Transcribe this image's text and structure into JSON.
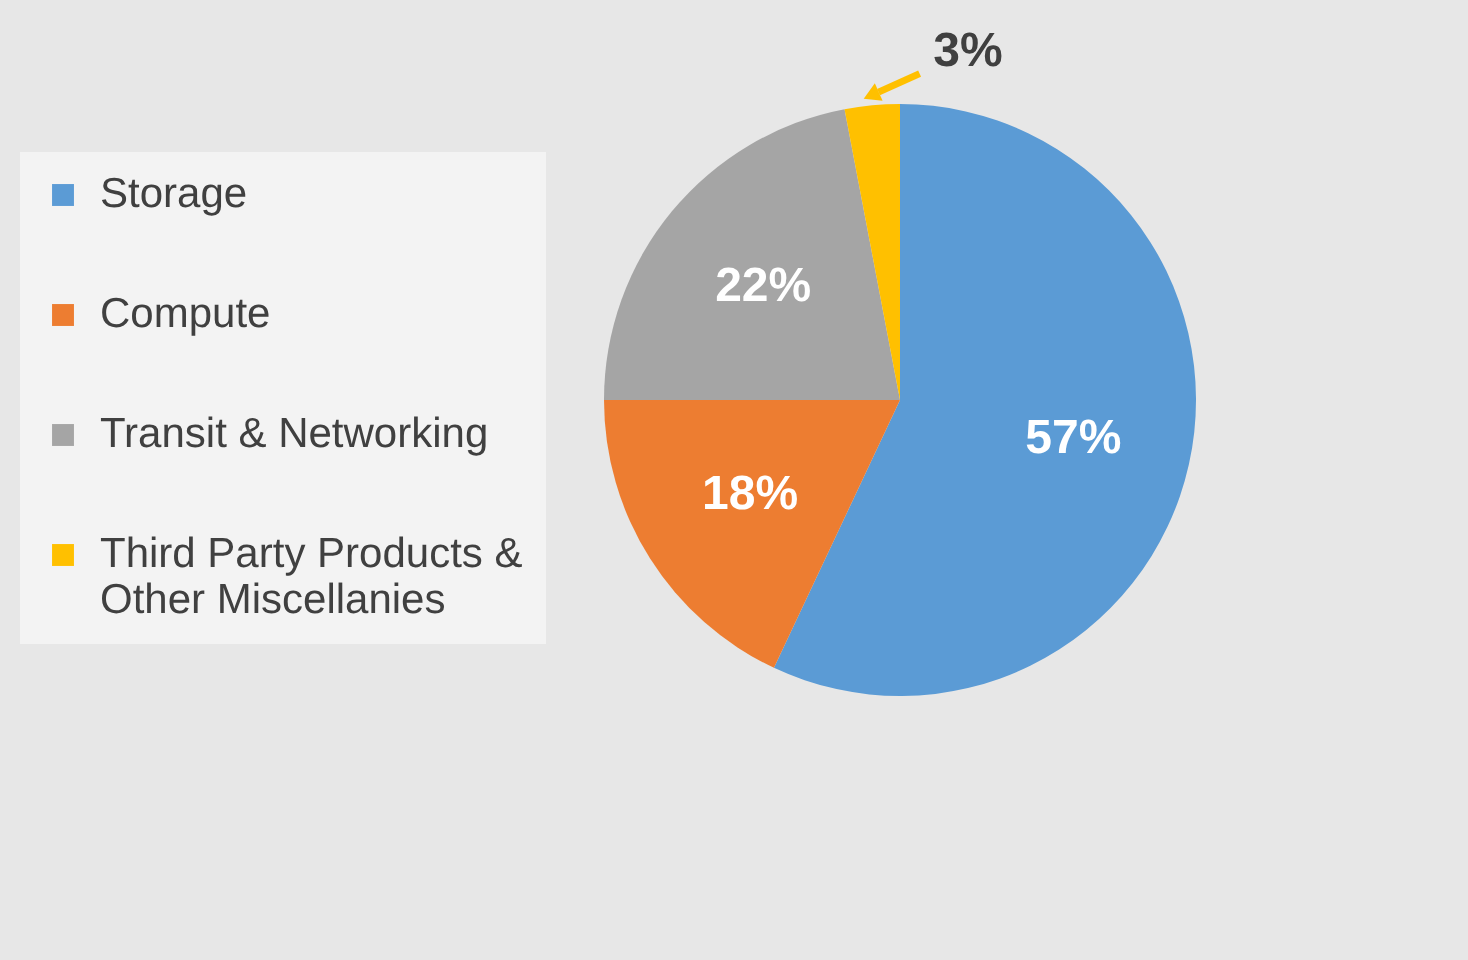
{
  "chart_data": {
    "type": "pie",
    "categories": [
      "Storage",
      "Compute",
      "Transit & Networking",
      "Third Party Products & Other Miscellanies"
    ],
    "values": [
      57,
      18,
      22,
      3
    ],
    "colors": [
      "#5b9bd5",
      "#ed7d31",
      "#a5a5a5",
      "#ffc000"
    ],
    "value_labels": [
      "57%",
      "18%",
      "22%",
      "3%"
    ],
    "legend": "left"
  }
}
